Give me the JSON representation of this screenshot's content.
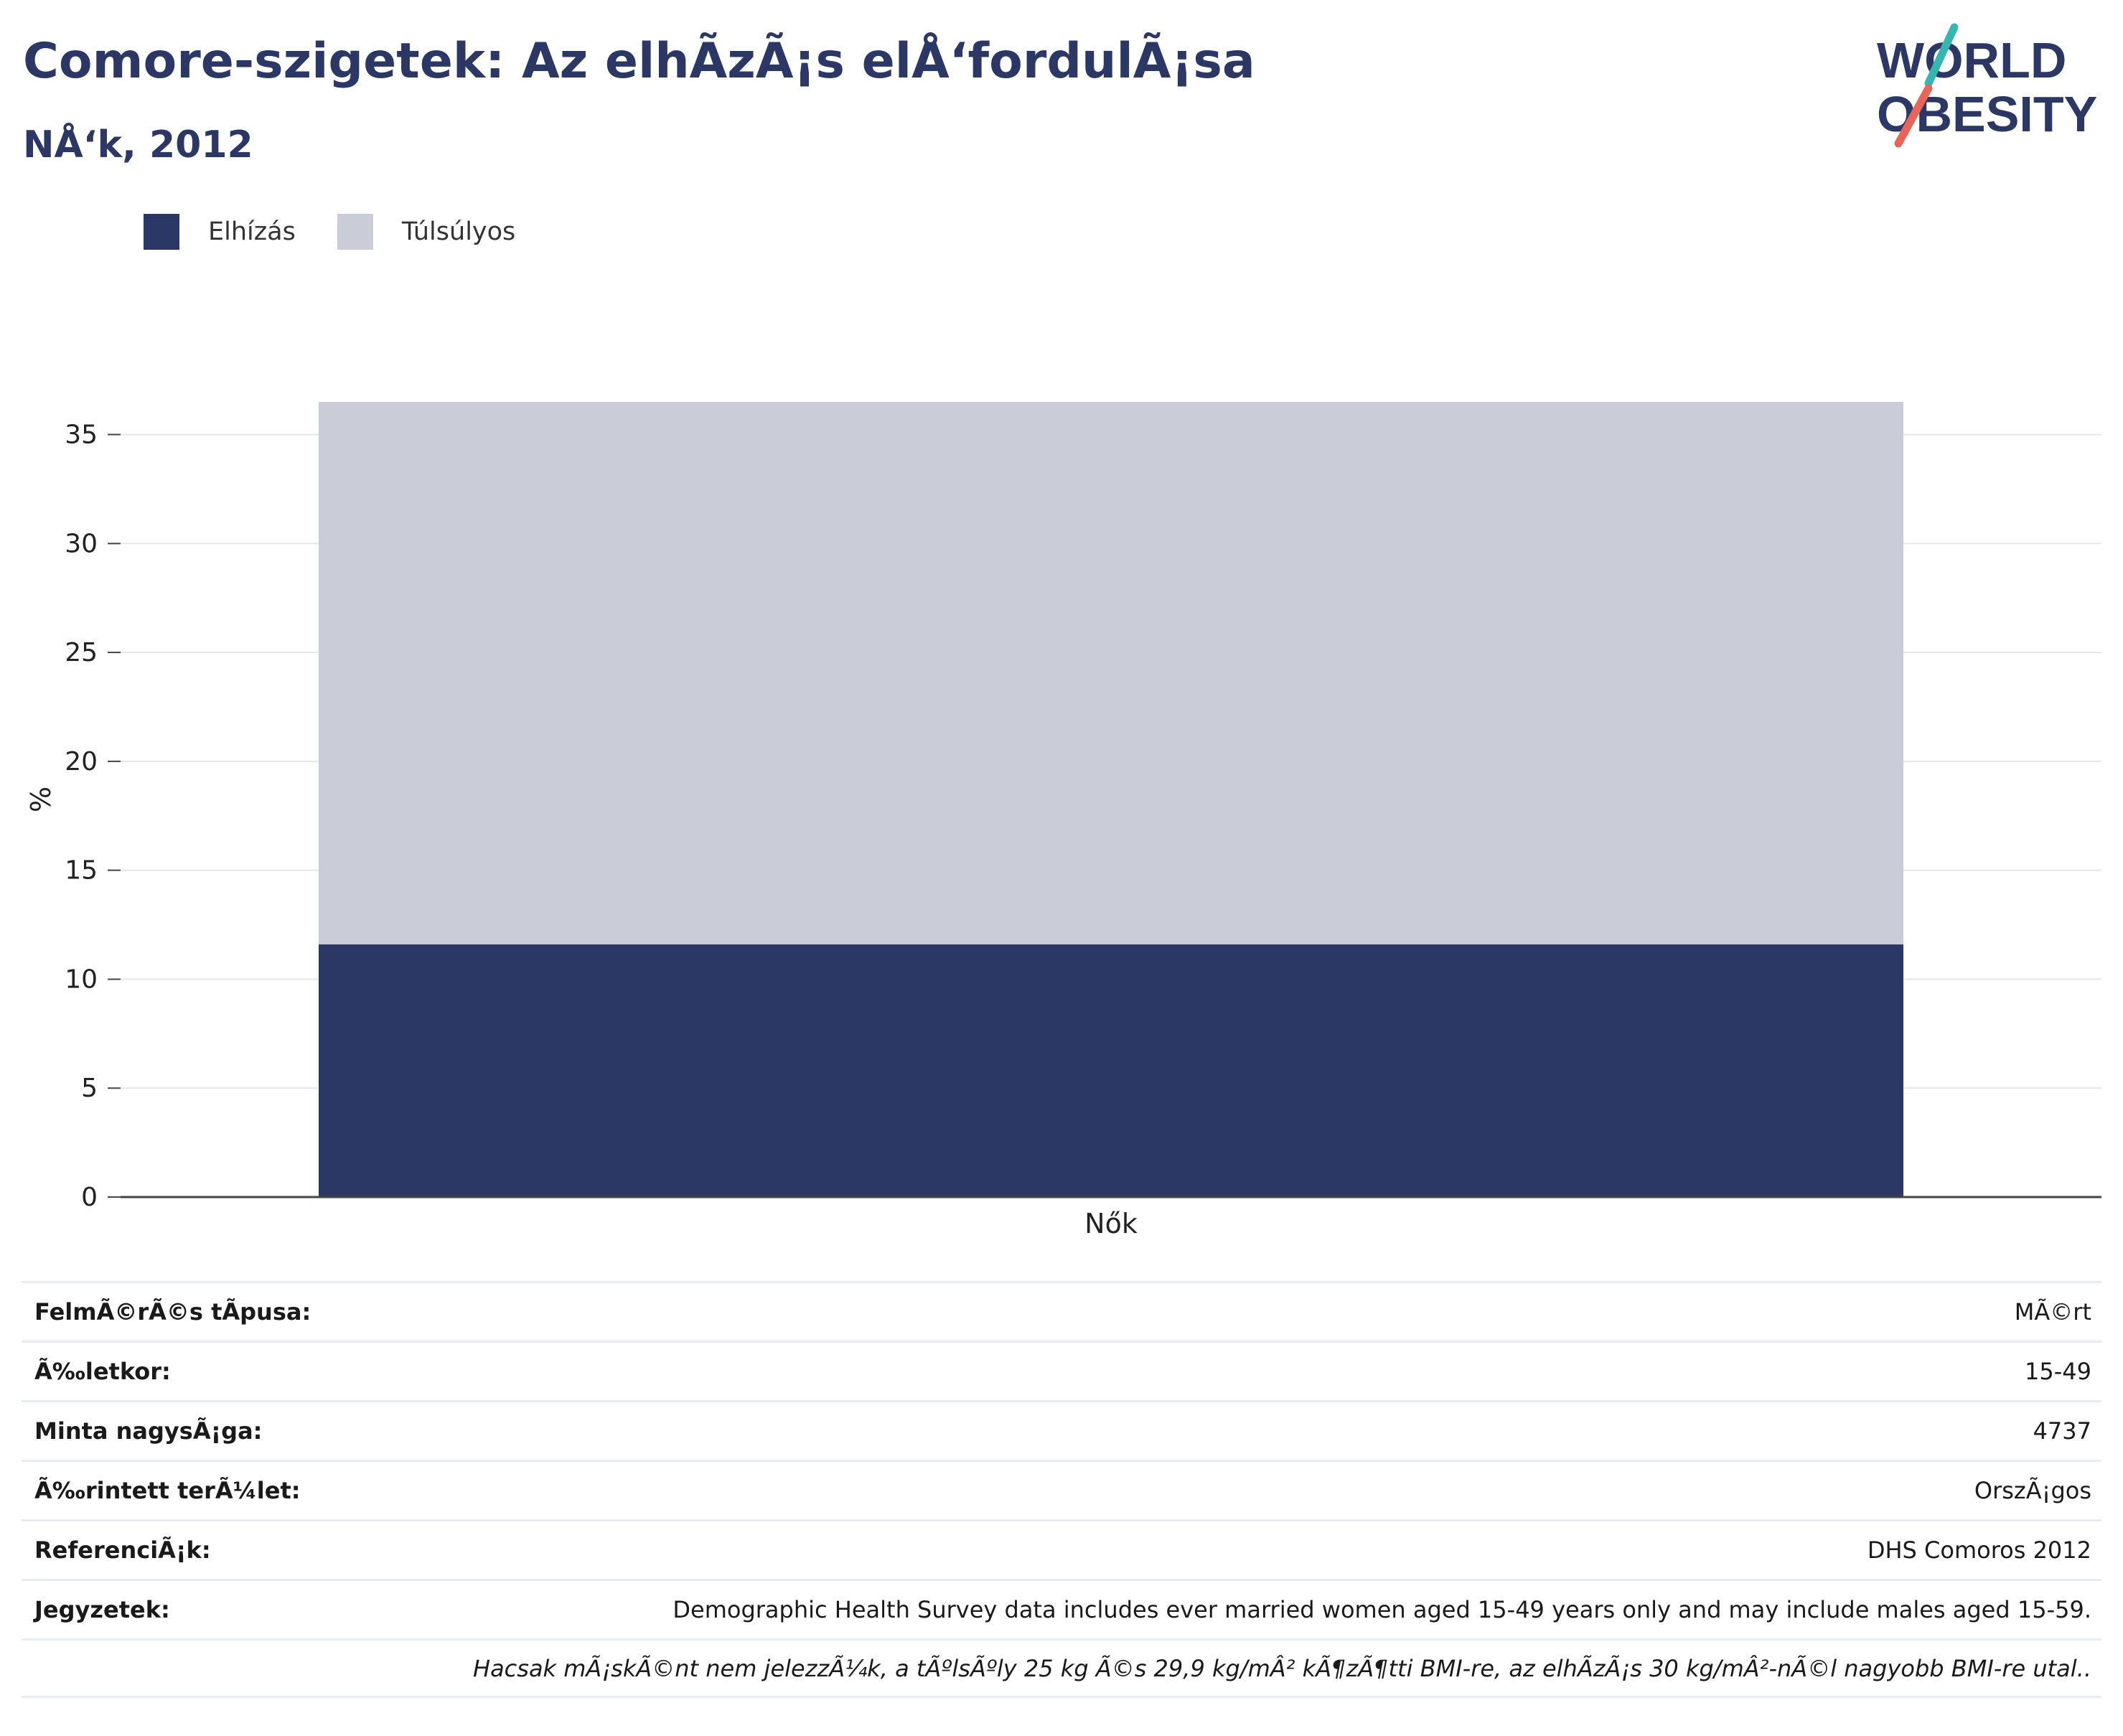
{
  "header": {
    "title": "Comore-szigetek: Az elhÃzÃ¡s elÅ‘fordulÃ¡sa",
    "subtitle": "NÅ‘k, 2012"
  },
  "logo": {
    "line1": "WORLD",
    "line2": "OBESITY"
  },
  "legend": {
    "items": [
      {
        "label": "Elhízás",
        "color": "#2b3765"
      },
      {
        "label": "Túlsúlyos",
        "color": "#c9ccd7"
      }
    ]
  },
  "chart_data": {
    "type": "bar",
    "stacked": true,
    "categories": [
      "Nők"
    ],
    "series": [
      {
        "name": "Elhízás",
        "values": [
          11.6
        ],
        "color": "#2b3765"
      },
      {
        "name": "Túlsúlyos",
        "values": [
          24.9
        ],
        "color": "#c9ccd7"
      }
    ],
    "xlabel": "",
    "ylabel": "%",
    "ylim": [
      0,
      36.5
    ],
    "yticks": [
      0,
      5,
      10,
      15,
      20,
      25,
      30,
      35
    ],
    "grid": true,
    "legend_position": "top-left"
  },
  "info": {
    "rows": [
      {
        "label": "FelmÃ©rÃ©s tÃpusa:",
        "value": "MÃ©rt"
      },
      {
        "label": "Ã‰letkor:",
        "value": "15-49"
      },
      {
        "label": "Minta nagysÃ¡ga:",
        "value": "4737"
      },
      {
        "label": "Ã‰rintett terÃ¼let:",
        "value": "OrszÃ¡gos"
      },
      {
        "label": "ReferenciÃ¡k:",
        "value": "DHS Comoros 2012"
      },
      {
        "label": "Jegyzetek:",
        "value": "Demographic Health Survey data includes ever married women aged 15-49 years only and may include males aged 15-59."
      }
    ],
    "footnote": "Hacsak mÃ¡skÃ©nt nem jelezzÃ¼k, a tÃºlsÃºly 25 kg Ã©s 29,9 kg/mÂ² kÃ¶zÃ¶tti BMI-re, az elhÃzÃ¡s 30 kg/mÂ²-nÃ©l nagyobb BMI-re utal.."
  }
}
